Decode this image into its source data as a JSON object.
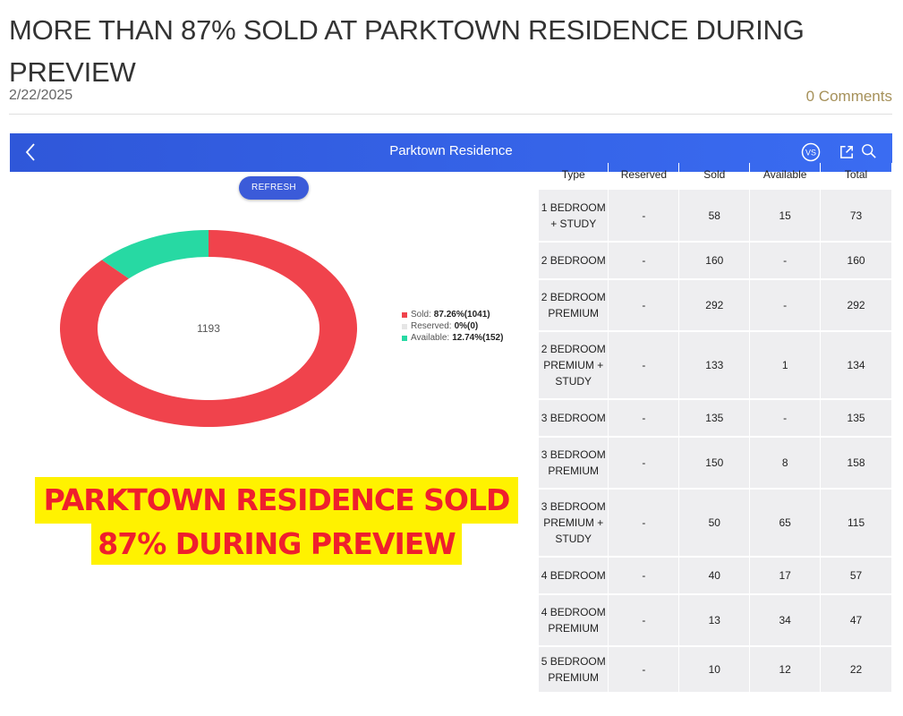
{
  "post": {
    "title": "MORE THAN 87% SOLD AT PARKTOWN RESIDENCE DURING PREVIEW",
    "date": "2/22/2025",
    "comments": "0 Comments"
  },
  "app": {
    "title": "Parktown Residence",
    "back_icon": "chevron-left-icon",
    "vs_label": "VS",
    "refresh_label": "REFRESH"
  },
  "chart_data": {
    "type": "pie",
    "center_label": "1193",
    "slices": [
      {
        "name": "Sold",
        "percent": 87.26,
        "count": 1041,
        "color": "#f0434c",
        "text": "87.26%(1041)"
      },
      {
        "name": "Reserved",
        "percent": 0,
        "count": 0,
        "color": "#dddddd",
        "text": "0%(0)"
      },
      {
        "name": "Available",
        "percent": 12.74,
        "count": 152,
        "color": "#27d9a3",
        "text": "12.74%(152)"
      }
    ]
  },
  "legend": [
    {
      "label": "Sold:",
      "value": "87.26%(1041)",
      "color": "#f0434c"
    },
    {
      "label": "Reserved:",
      "value": "0%(0)",
      "color": "#dddddd"
    },
    {
      "label": "Available:",
      "value": "12.74%(152)",
      "color": "#27d9a3"
    }
  ],
  "banner": {
    "line1": "PARKTOWN RESIDENCE SOLD",
    "line2": "87% DURING PREVIEW"
  },
  "table": {
    "headers": [
      "Type",
      "Reserved",
      "Sold",
      "Available",
      "Total"
    ],
    "rows": [
      {
        "type": "1 BEDROOM + STUDY",
        "reserved": "-",
        "sold": "58",
        "available": "15",
        "total": "73"
      },
      {
        "type": "2 BEDROOM",
        "reserved": "-",
        "sold": "160",
        "available": "-",
        "total": "160"
      },
      {
        "type": "2 BEDROOM PREMIUM",
        "reserved": "-",
        "sold": "292",
        "available": "-",
        "total": "292"
      },
      {
        "type": "2 BEDROOM PREMIUM + STUDY",
        "reserved": "-",
        "sold": "133",
        "available": "1",
        "total": "134"
      },
      {
        "type": "3 BEDROOM",
        "reserved": "-",
        "sold": "135",
        "available": "-",
        "total": "135"
      },
      {
        "type": "3 BEDROOM PREMIUM",
        "reserved": "-",
        "sold": "150",
        "available": "8",
        "total": "158"
      },
      {
        "type": "3 BEDROOM PREMIUM + STUDY",
        "reserved": "-",
        "sold": "50",
        "available": "65",
        "total": "115"
      },
      {
        "type": "4 BEDROOM",
        "reserved": "-",
        "sold": "40",
        "available": "17",
        "total": "57"
      },
      {
        "type": "4 BEDROOM PREMIUM",
        "reserved": "-",
        "sold": "13",
        "available": "34",
        "total": "47"
      },
      {
        "type": "5 BEDROOM PREMIUM",
        "reserved": "-",
        "sold": "10",
        "available": "12",
        "total": "22"
      }
    ]
  }
}
